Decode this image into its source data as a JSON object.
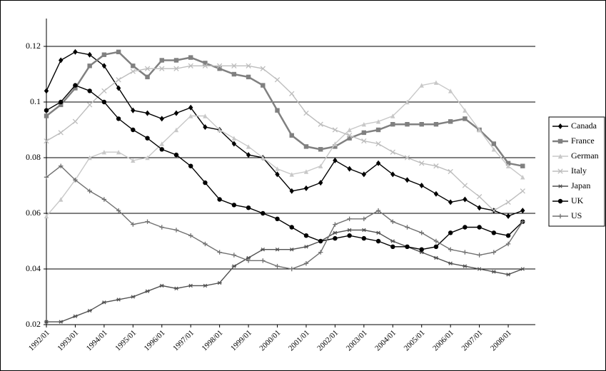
{
  "chart_data": {
    "type": "line",
    "categories": [
      "1992/01",
      null,
      "1993/01",
      null,
      "1994/01",
      null,
      "1995/01",
      null,
      "1996/01",
      null,
      "1997/01",
      null,
      "1998/01",
      null,
      "1999/01",
      null,
      "2000/01",
      null,
      "2001/01",
      null,
      "2002/01",
      null,
      "2003/01",
      null,
      "2004/01",
      null,
      "2005/01",
      null,
      "2006/01",
      null,
      "2007/01",
      null,
      "2008/01",
      null
    ],
    "ylim": [
      0.02,
      0.13
    ],
    "yticks": [
      0.02,
      0.04,
      0.06,
      0.08,
      0.1,
      0.12
    ],
    "grid": true,
    "legend": "right",
    "series": [
      {
        "name": "Canada",
        "color": "#000000",
        "marker": "diamond",
        "values": [
          0.104,
          0.115,
          0.118,
          0.117,
          0.113,
          0.105,
          0.097,
          0.096,
          0.094,
          0.096,
          0.098,
          0.091,
          0.09,
          0.085,
          0.081,
          0.08,
          0.074,
          0.068,
          0.069,
          0.071,
          0.079,
          0.076,
          0.074,
          0.078,
          0.074,
          0.072,
          0.07,
          0.067,
          0.064,
          0.065,
          0.062,
          0.061,
          0.059,
          0.061
        ]
      },
      {
        "name": "France",
        "color": "#808080",
        "marker": "square",
        "values": [
          0.095,
          0.099,
          0.105,
          0.113,
          0.117,
          0.118,
          0.113,
          0.109,
          0.115,
          0.115,
          0.116,
          0.114,
          0.112,
          0.11,
          0.109,
          0.106,
          0.097,
          0.088,
          0.084,
          0.083,
          0.084,
          0.087,
          0.089,
          0.09,
          0.092,
          0.092,
          0.092,
          0.092,
          0.093,
          0.094,
          0.09,
          0.085,
          0.078,
          0.077
        ]
      },
      {
        "name": "German",
        "color": "#c8c8c8",
        "marker": "triangle",
        "values": [
          0.059,
          0.065,
          0.072,
          0.08,
          0.082,
          0.082,
          0.079,
          0.08,
          0.085,
          0.09,
          0.095,
          0.095,
          0.09,
          0.087,
          0.084,
          0.08,
          0.076,
          0.074,
          0.075,
          0.077,
          0.085,
          0.09,
          0.092,
          0.093,
          0.095,
          0.1,
          0.106,
          0.107,
          0.104,
          0.097,
          0.09,
          0.083,
          0.077,
          0.073
        ]
      },
      {
        "name": "Italy",
        "color": "#bdbdbd",
        "marker": "x",
        "values": [
          0.086,
          0.089,
          0.093,
          0.099,
          0.104,
          0.108,
          0.111,
          0.112,
          0.112,
          0.112,
          0.113,
          0.113,
          0.113,
          0.113,
          0.113,
          0.112,
          0.108,
          0.103,
          0.096,
          0.092,
          0.09,
          0.088,
          0.086,
          0.085,
          0.082,
          0.08,
          0.078,
          0.077,
          0.075,
          0.07,
          0.066,
          0.061,
          0.064,
          0.068
        ]
      },
      {
        "name": "Japan",
        "color": "#505050",
        "marker": "star",
        "values": [
          0.021,
          0.021,
          0.023,
          0.025,
          0.028,
          0.029,
          0.03,
          0.032,
          0.034,
          0.033,
          0.034,
          0.034,
          0.035,
          0.041,
          0.044,
          0.047,
          0.047,
          0.047,
          0.048,
          0.05,
          0.053,
          0.054,
          0.054,
          0.053,
          0.05,
          0.048,
          0.046,
          0.044,
          0.042,
          0.041,
          0.04,
          0.039,
          0.038,
          0.04
        ]
      },
      {
        "name": "UK",
        "color": "#000000",
        "marker": "circle",
        "values": [
          0.097,
          0.1,
          0.106,
          0.104,
          0.1,
          0.094,
          0.09,
          0.087,
          0.083,
          0.081,
          0.077,
          0.071,
          0.065,
          0.063,
          0.062,
          0.06,
          0.058,
          0.055,
          0.052,
          0.05,
          0.051,
          0.052,
          0.051,
          0.05,
          0.048,
          0.048,
          0.047,
          0.048,
          0.053,
          0.055,
          0.055,
          0.053,
          0.052,
          0.057
        ]
      },
      {
        "name": "US",
        "color": "#707070",
        "marker": "plus",
        "values": [
          0.073,
          0.077,
          0.072,
          0.068,
          0.065,
          0.061,
          0.056,
          0.057,
          0.055,
          0.054,
          0.052,
          0.049,
          0.046,
          0.045,
          0.043,
          0.043,
          0.041,
          0.04,
          0.042,
          0.046,
          0.056,
          0.058,
          0.058,
          0.061,
          0.057,
          0.055,
          0.053,
          0.05,
          0.047,
          0.046,
          0.045,
          0.046,
          0.049,
          0.057
        ]
      }
    ]
  }
}
